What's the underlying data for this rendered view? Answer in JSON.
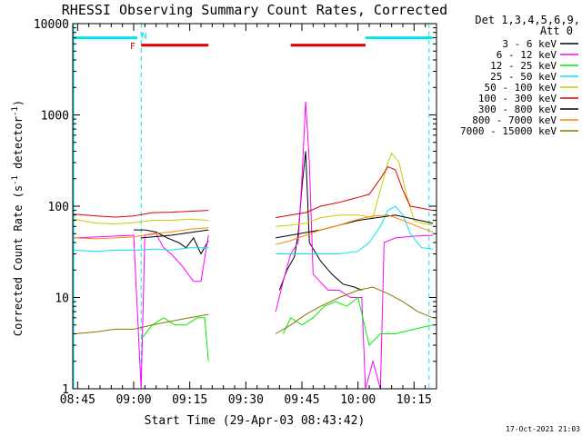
{
  "chart_data": {
    "type": "line",
    "title": "RHESSI Observing Summary Count Rates, Corrected",
    "xlabel": "Start Time (29-Apr-03 08:43:42)",
    "ylabel_main": "Corrected Count Rate (s",
    "ylabel_sup1": "-1",
    "ylabel_mid": " detector",
    "ylabel_sup2": "-1",
    "ylabel_end": ")",
    "y_scale": "log",
    "ylim": [
      1,
      10000
    ],
    "y_ticks": [
      1,
      10,
      100,
      1000,
      10000
    ],
    "y_tick_labels": [
      "1",
      "10",
      "100",
      "1000",
      "10000"
    ],
    "xlim": [
      "08:43:42",
      "10:21:00"
    ],
    "x_ticks": [
      "08:45",
      "09:00",
      "09:15",
      "09:30",
      "09:45",
      "10:00",
      "10:15"
    ],
    "legend_header": [
      "Det 1,3,4,5,6,9,",
      "Att 0"
    ],
    "legend_position": "top-right, outside plot",
    "timestamp": "17-Oct-2021 21:03",
    "flags": [
      {
        "name": "attenuator",
        "color": "#00e5ee",
        "level": 7000,
        "segments": [
          [
            "08:44",
            "09:01"
          ],
          [
            "10:02",
            "10:20"
          ]
        ]
      },
      {
        "name": "flare",
        "color": "#dd0000",
        "level": 5800,
        "segments": [
          [
            "09:02",
            "09:20"
          ],
          [
            "09:42",
            "10:02"
          ]
        ]
      }
    ],
    "flag_labels": [
      {
        "text": "F",
        "color": "#dd0000",
        "time": "09:00",
        "level": 5800
      },
      {
        "text": "N",
        "color": "#00e5ee",
        "time": "09:03",
        "level": 7500
      }
    ],
    "dashed_markers": [
      {
        "time": "09:02",
        "color": "#00e5ee"
      },
      {
        "time": "10:19",
        "color": "#00e5ee"
      }
    ],
    "series": [
      {
        "name": "3 - 6 keV",
        "color": "#000000",
        "segments": [
          [
            [
              "09:00",
              55
            ],
            [
              "09:03",
              55
            ],
            [
              "09:06",
              52
            ],
            [
              "09:09",
              45
            ],
            [
              "09:12",
              40
            ],
            [
              "09:14",
              35
            ],
            [
              "09:16",
              45
            ],
            [
              "09:18",
              30
            ],
            [
              "09:20",
              42
            ]
          ],
          [
            [
              "09:39",
              12
            ],
            [
              "09:41",
              20
            ],
            [
              "09:43",
              28
            ],
            [
              "09:44",
              50
            ],
            [
              "09:45",
              160
            ],
            [
              "09:46",
              400
            ],
            [
              "09:47",
              40
            ],
            [
              "09:50",
              25
            ],
            [
              "09:53",
              18
            ],
            [
              "09:56",
              14
            ],
            [
              "09:59",
              13
            ],
            [
              "10:01",
              12
            ]
          ]
        ]
      },
      {
        "name": "6 - 12 keV",
        "color": "#ff00ff",
        "segments": [
          [
            [
              "08:44",
              45
            ],
            [
              "09:00",
              48
            ],
            [
              "09:02",
              1
            ],
            [
              "09:03",
              48
            ],
            [
              "09:06",
              50
            ],
            [
              "09:08",
              35
            ],
            [
              "09:10",
              30
            ],
            [
              "09:13",
              22
            ],
            [
              "09:16",
              15
            ],
            [
              "09:18",
              15
            ],
            [
              "09:20",
              48
            ]
          ],
          [
            [
              "09:38",
              7
            ],
            [
              "09:40",
              15
            ],
            [
              "09:42",
              30
            ],
            [
              "09:44",
              40
            ],
            [
              "09:45",
              200
            ],
            [
              "09:46",
              1400
            ],
            [
              "09:47",
              300
            ],
            [
              "09:48",
              18
            ],
            [
              "09:52",
              12
            ],
            [
              "09:55",
              12
            ],
            [
              "09:58",
              10
            ],
            [
              "10:01",
              10
            ],
            [
              "10:02",
              1
            ],
            [
              "10:04",
              2
            ],
            [
              "10:06",
              1
            ],
            [
              "10:07",
              40
            ],
            [
              "10:10",
              45
            ],
            [
              "10:15",
              47
            ],
            [
              "10:20",
              48
            ]
          ]
        ]
      },
      {
        "name": "12 - 25 keV",
        "color": "#00ee00",
        "segments": [
          [
            [
              "09:02",
              3.5
            ],
            [
              "09:05",
              5
            ],
            [
              "09:08",
              6
            ],
            [
              "09:11",
              5
            ],
            [
              "09:14",
              5
            ],
            [
              "09:17",
              6
            ],
            [
              "09:19",
              6
            ],
            [
              "09:20",
              2
            ]
          ],
          [
            [
              "09:40",
              4
            ],
            [
              "09:42",
              6
            ],
            [
              "09:45",
              5
            ],
            [
              "09:48",
              6
            ],
            [
              "09:51",
              8
            ],
            [
              "09:54",
              9
            ],
            [
              "09:57",
              8
            ],
            [
              "10:00",
              10
            ],
            [
              "10:03",
              3
            ],
            [
              "10:06",
              4
            ],
            [
              "10:10",
              4
            ],
            [
              "10:15",
              4.5
            ],
            [
              "10:20",
              5
            ]
          ]
        ]
      },
      {
        "name": "25 - 50 keV",
        "color": "#00e5ee",
        "segments": [
          [
            [
              "08:44",
              33
            ],
            [
              "08:50",
              32
            ],
            [
              "08:55",
              33
            ],
            [
              "09:00",
              33
            ],
            [
              "09:02",
              33
            ],
            [
              "09:06",
              34
            ],
            [
              "09:10",
              33
            ],
            [
              "09:15",
              35
            ],
            [
              "09:20",
              35
            ]
          ],
          [
            [
              "09:38",
              30
            ],
            [
              "09:45",
              30
            ],
            [
              "09:50",
              30
            ],
            [
              "09:55",
              30
            ],
            [
              "10:00",
              32
            ],
            [
              "10:03",
              40
            ],
            [
              "10:06",
              60
            ],
            [
              "10:08",
              90
            ],
            [
              "10:10",
              100
            ],
            [
              "10:12",
              80
            ],
            [
              "10:14",
              50
            ],
            [
              "10:17",
              35
            ],
            [
              "10:20",
              34
            ]
          ]
        ]
      },
      {
        "name": "50 - 100 keV",
        "color": "#cccc00",
        "segments": [
          [
            [
              "08:44",
              72
            ],
            [
              "08:50",
              65
            ],
            [
              "08:55",
              64
            ],
            [
              "09:00",
              66
            ],
            [
              "09:05",
              70
            ],
            [
              "09:10",
              70
            ],
            [
              "09:15",
              72
            ],
            [
              "09:20",
              70
            ]
          ],
          [
            [
              "09:38",
              60
            ],
            [
              "09:42",
              62
            ],
            [
              "09:46",
              65
            ],
            [
              "09:50",
              75
            ],
            [
              "09:55",
              80
            ],
            [
              "10:00",
              80
            ],
            [
              "10:04",
              75
            ],
            [
              "10:06",
              150
            ],
            [
              "10:08",
              300
            ],
            [
              "10:09",
              380
            ],
            [
              "10:11",
              300
            ],
            [
              "10:13",
              130
            ],
            [
              "10:15",
              70
            ],
            [
              "10:17",
              65
            ],
            [
              "10:20",
              62
            ]
          ]
        ]
      },
      {
        "name": "100 - 300 keV",
        "color": "#dd0000",
        "segments": [
          [
            [
              "08:44",
              82
            ],
            [
              "08:50",
              78
            ],
            [
              "08:55",
              76
            ],
            [
              "09:00",
              78
            ],
            [
              "09:05",
              85
            ],
            [
              "09:10",
              86
            ],
            [
              "09:15",
              88
            ],
            [
              "09:20",
              90
            ]
          ],
          [
            [
              "09:38",
              75
            ],
            [
              "09:42",
              80
            ],
            [
              "09:46",
              85
            ],
            [
              "09:50",
              100
            ],
            [
              "09:55",
              110
            ],
            [
              "10:00",
              125
            ],
            [
              "10:03",
              135
            ],
            [
              "10:06",
              200
            ],
            [
              "10:08",
              270
            ],
            [
              "10:10",
              250
            ],
            [
              "10:12",
              150
            ],
            [
              "10:14",
              100
            ],
            [
              "10:17",
              95
            ],
            [
              "10:20",
              90
            ]
          ]
        ]
      },
      {
        "name": "300 - 800 keV",
        "color": "#000000",
        "segments": [
          [
            [
              "09:02",
              45
            ],
            [
              "09:10",
              48
            ],
            [
              "09:20",
              55
            ]
          ],
          [
            [
              "09:38",
              45
            ],
            [
              "09:50",
              55
            ],
            [
              "10:00",
              70
            ],
            [
              "10:10",
              80
            ],
            [
              "10:20",
              65
            ]
          ]
        ]
      },
      {
        "name": "800 - 7000 keV",
        "color": "#ff8800",
        "segments": [
          [
            [
              "08:44",
              45
            ],
            [
              "08:50",
              44
            ],
            [
              "08:55",
              45
            ],
            [
              "09:00",
              46
            ],
            [
              "09:05",
              50
            ],
            [
              "09:10",
              52
            ],
            [
              "09:15",
              56
            ],
            [
              "09:20",
              58
            ]
          ],
          [
            [
              "09:38",
              38
            ],
            [
              "09:42",
              42
            ],
            [
              "09:46",
              48
            ],
            [
              "09:50",
              55
            ],
            [
              "09:55",
              62
            ],
            [
              "10:00",
              72
            ],
            [
              "10:04",
              78
            ],
            [
              "10:08",
              80
            ],
            [
              "10:12",
              70
            ],
            [
              "10:16",
              60
            ],
            [
              "10:20",
              52
            ]
          ]
        ]
      },
      {
        "name": "7000 - 15000 keV",
        "color": "#8b7500",
        "segments": [
          [
            [
              "08:44",
              4
            ],
            [
              "08:50",
              4.2
            ],
            [
              "08:55",
              4.5
            ],
            [
              "09:00",
              4.5
            ],
            [
              "09:05",
              5
            ],
            [
              "09:10",
              5.5
            ],
            [
              "09:15",
              6
            ],
            [
              "09:20",
              6.5
            ]
          ],
          [
            [
              "09:38",
              4
            ],
            [
              "09:42",
              5
            ],
            [
              "09:46",
              6.5
            ],
            [
              "09:50",
              8
            ],
            [
              "09:55",
              10
            ],
            [
              "10:00",
              12
            ],
            [
              "10:04",
              13
            ],
            [
              "10:08",
              11
            ],
            [
              "10:12",
              9
            ],
            [
              "10:16",
              7
            ],
            [
              "10:20",
              6
            ]
          ]
        ]
      }
    ]
  }
}
